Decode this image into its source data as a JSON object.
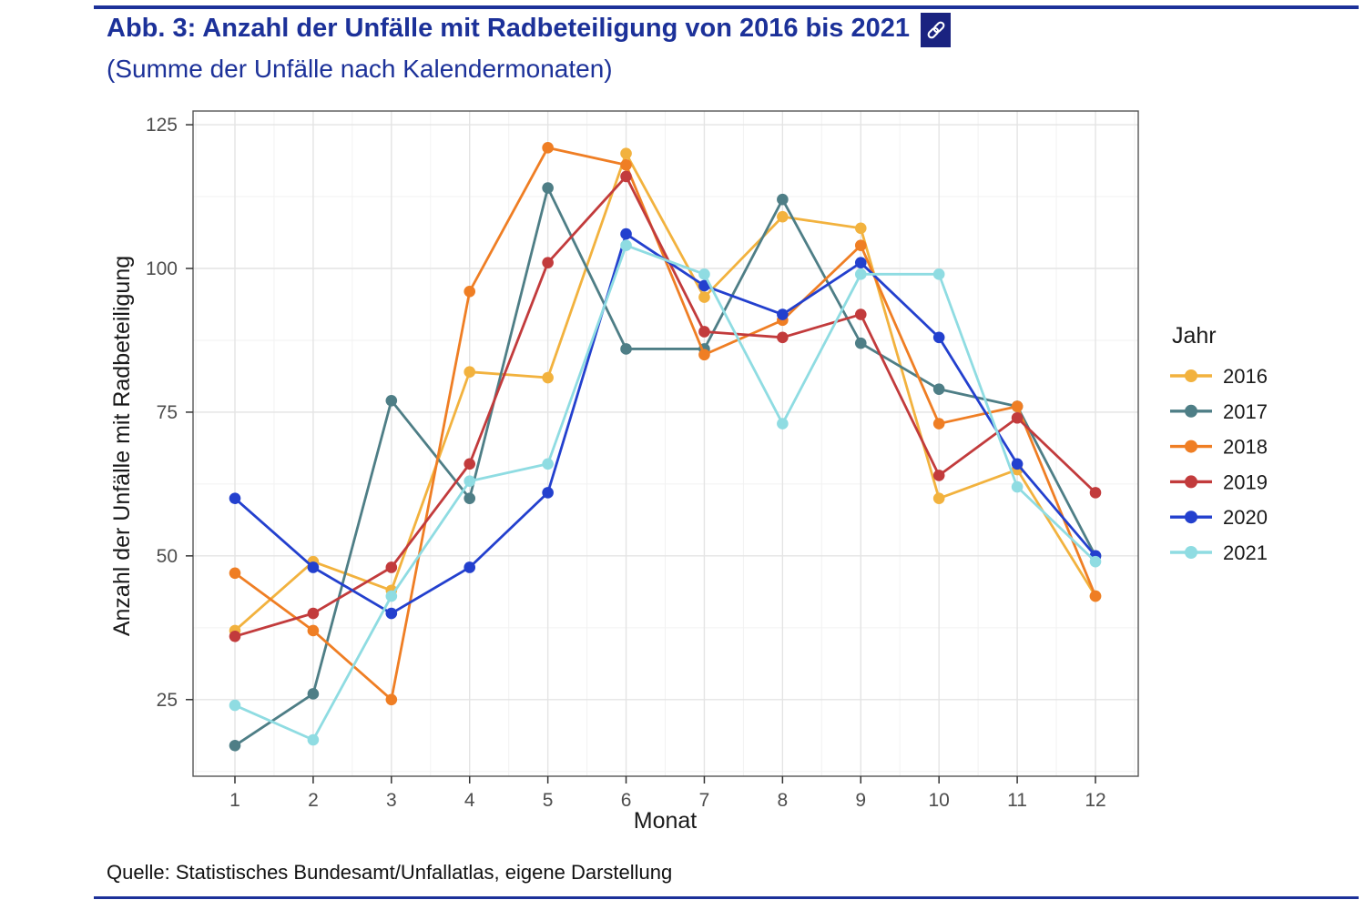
{
  "theme": {
    "accent": "#1C3199",
    "icon_bg": "#1A2380",
    "axis_text_color": "#4D4D4D",
    "axis_title_color": "#1A1A1A",
    "grid_major_color": "#E4E4E4",
    "grid_minor_color": "#F2F2F2",
    "panel_border_color": "#555555",
    "tick_color": "#333333"
  },
  "header": {
    "title": "Abb. 3: Anzahl der Unfälle mit Radbeteiligung von 2016 bis 2021",
    "subtitle": "(Summe der Unfälle nach Kalendermonaten)",
    "link_icon": "chain-link-icon"
  },
  "footer": {
    "source": "Quelle: Statistisches Bundesamt/Unfallatlas, eigene Darstellung"
  },
  "chart_data": {
    "type": "line",
    "xlabel": "Monat",
    "ylabel": "Anzahl der Unfälle mit Radbeteiligung",
    "categories": [
      1,
      2,
      3,
      4,
      5,
      6,
      7,
      8,
      9,
      10,
      11,
      12
    ],
    "yticks": [
      25,
      50,
      75,
      100,
      125
    ],
    "ylim": [
      11,
      128
    ],
    "grid": true,
    "legend_title": "Jahr",
    "legend_position": "right",
    "series": [
      {
        "name": "2016",
        "color": "#F2B23E",
        "values": [
          37,
          49,
          44,
          82,
          81,
          120,
          95,
          109,
          107,
          60,
          65,
          43
        ]
      },
      {
        "name": "2017",
        "color": "#4E7E86",
        "values": [
          17,
          26,
          77,
          60,
          114,
          86,
          86,
          112,
          87,
          79,
          76,
          50
        ]
      },
      {
        "name": "2018",
        "color": "#EF7E24",
        "values": [
          47,
          37,
          25,
          96,
          121,
          118,
          85,
          91,
          104,
          73,
          76,
          43
        ]
      },
      {
        "name": "2019",
        "color": "#C23B3C",
        "values": [
          36,
          40,
          48,
          66,
          101,
          116,
          89,
          88,
          92,
          64,
          74,
          61
        ]
      },
      {
        "name": "2020",
        "color": "#2340CE",
        "values": [
          60,
          48,
          40,
          48,
          61,
          106,
          97,
          92,
          101,
          88,
          66,
          50
        ]
      },
      {
        "name": "2021",
        "color": "#8FDCE2",
        "values": [
          24,
          18,
          43,
          63,
          66,
          104,
          99,
          73,
          99,
          99,
          62,
          49
        ]
      }
    ]
  }
}
